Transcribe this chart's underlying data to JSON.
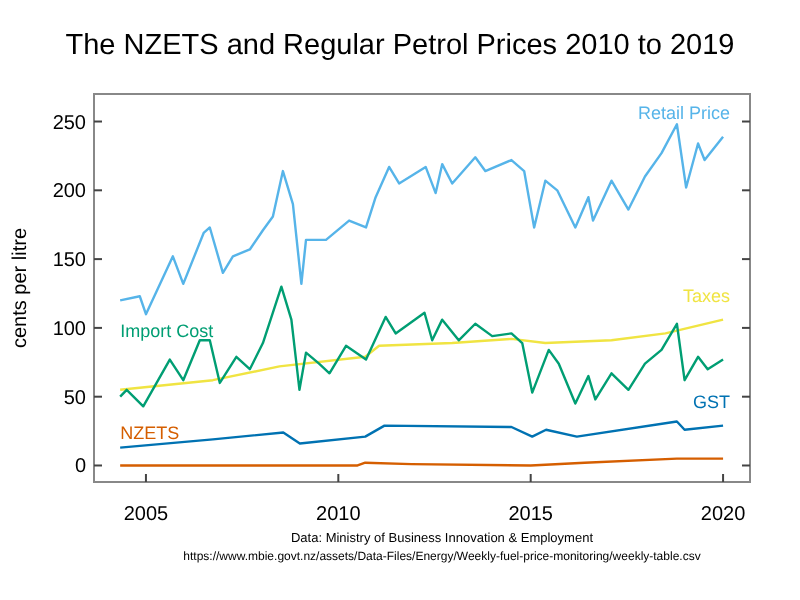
{
  "chart_data": {
    "type": "line",
    "title": "The NZETS and Regular Petrol Prices 2010 to 2019",
    "ylabel": "cents per litre",
    "annotations": [
      "Data: Ministry of Business Innovation & Employment",
      "https://www.mbie.govt.nz/assets/Data-Files/Energy/Weekly-fuel-price-monitoring/weekly-table.csv"
    ],
    "xlim": [
      2003.65,
      2020.7
    ],
    "xticks": [
      2005,
      2010,
      2015,
      2020
    ],
    "ylim": [
      -12,
      270
    ],
    "yticks": [
      0,
      50,
      100,
      150,
      200,
      250
    ],
    "grid": false,
    "line_style": "solid",
    "marker": "none",
    "series": [
      {
        "name": "Retail Price",
        "color": "#56b4e9",
        "x": [
          2004.33,
          2004.84,
          2005.0,
          2005.7,
          2005.97,
          2006.5,
          2006.66,
          2007.0,
          2007.26,
          2007.7,
          2008.04,
          2008.3,
          2008.56,
          2008.82,
          2009.04,
          2009.16,
          2009.68,
          2010.28,
          2010.72,
          2010.97,
          2011.32,
          2011.58,
          2012.27,
          2012.53,
          2012.7,
          2012.96,
          2013.56,
          2013.82,
          2014.5,
          2014.83,
          2015.09,
          2015.38,
          2015.69,
          2016.16,
          2016.5,
          2016.62,
          2017.1,
          2017.54,
          2017.97,
          2018.4,
          2018.8,
          2019.04,
          2019.35,
          2019.52,
          2020.0
        ],
        "values": [
          120,
          123,
          110,
          152,
          132,
          169,
          173,
          140,
          152,
          157,
          171,
          181,
          214,
          190,
          132,
          164,
          164,
          178,
          173,
          195,
          217,
          205,
          217,
          198,
          219,
          205,
          224,
          214,
          222,
          214,
          173,
          207,
          200,
          173,
          195,
          178,
          207,
          186,
          210,
          227,
          248,
          202,
          234,
          222,
          239
        ]
      },
      {
        "name": "Taxes",
        "color": "#f0e442",
        "x": [
          2004.33,
          2006.74,
          2008.47,
          2010.7,
          2011.06,
          2012.96,
          2014.5,
          2015.38,
          2017.1,
          2018.5,
          2020.0
        ],
        "values": [
          55,
          62,
          72,
          79,
          87,
          89,
          92,
          89,
          91,
          96,
          106
        ]
      },
      {
        "name": "Import Cost",
        "color": "#009e73",
        "x": [
          2004.33,
          2004.5,
          2004.93,
          2005.62,
          2005.97,
          2006.4,
          2006.66,
          2006.92,
          2007.35,
          2007.7,
          2008.04,
          2008.52,
          2008.78,
          2008.99,
          2009.16,
          2009.5,
          2009.77,
          2010.2,
          2010.72,
          2011.23,
          2011.49,
          2012.24,
          2012.44,
          2012.7,
          2013.13,
          2013.56,
          2014.0,
          2014.5,
          2014.78,
          2015.04,
          2015.47,
          2015.73,
          2016.16,
          2016.5,
          2016.68,
          2017.1,
          2017.54,
          2017.97,
          2018.4,
          2018.8,
          2019.0,
          2019.35,
          2019.6,
          2020.0
        ],
        "values": [
          50,
          55,
          43,
          77,
          62,
          91,
          91,
          60,
          79,
          70,
          89,
          130,
          106,
          55,
          82,
          74,
          67,
          87,
          77,
          108,
          96,
          111,
          91,
          106,
          91,
          103,
          94,
          96,
          89,
          53,
          84,
          74,
          45,
          65,
          48,
          67,
          55,
          74,
          84,
          103,
          62,
          79,
          70,
          77
        ]
      },
      {
        "name": "GST",
        "color": "#0072b2",
        "x": [
          2004.33,
          2006.74,
          2008.57,
          2009.0,
          2010.7,
          2011.2,
          2014.5,
          2015.04,
          2015.4,
          2016.2,
          2018.8,
          2019.0,
          2020.0
        ],
        "values": [
          13,
          19,
          24,
          16,
          21,
          29,
          28,
          21,
          26,
          21,
          32,
          26,
          29
        ]
      },
      {
        "name": "NZETS",
        "color": "#d55e00",
        "x": [
          2004.33,
          2010.5,
          2010.7,
          2011.9,
          2015.0,
          2016.4,
          2018.8,
          2020.0
        ],
        "values": [
          0,
          0,
          2,
          1,
          0,
          2,
          5,
          5
        ]
      }
    ]
  }
}
